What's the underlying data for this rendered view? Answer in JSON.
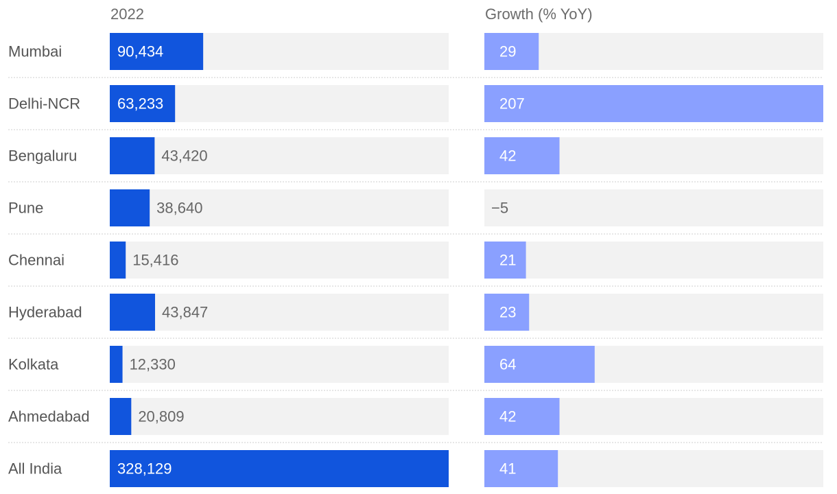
{
  "chart_data": {
    "type": "bar",
    "columns": [
      {
        "key": "value_2022",
        "header": "2022",
        "xlim": [
          0,
          328129
        ]
      },
      {
        "key": "growth_yoy",
        "header": "Growth (% YoY)",
        "xlim": [
          -5,
          207
        ]
      }
    ],
    "rows": [
      {
        "label": "Mumbai",
        "value_2022": 90434,
        "value_2022_label": "90,434",
        "growth_yoy": 29,
        "growth_label": "29"
      },
      {
        "label": "Delhi-NCR",
        "value_2022": 63233,
        "value_2022_label": "63,233",
        "growth_yoy": 207,
        "growth_label": "207"
      },
      {
        "label": "Bengaluru",
        "value_2022": 43420,
        "value_2022_label": "43,420",
        "growth_yoy": 42,
        "growth_label": "42"
      },
      {
        "label": "Pune",
        "value_2022": 38640,
        "value_2022_label": "38,640",
        "growth_yoy": -5,
        "growth_label": "−5"
      },
      {
        "label": "Chennai",
        "value_2022": 15416,
        "value_2022_label": "15,416",
        "growth_yoy": 21,
        "growth_label": "21"
      },
      {
        "label": "Hyderabad",
        "value_2022": 43847,
        "value_2022_label": "43,847",
        "growth_yoy": 23,
        "growth_label": "23"
      },
      {
        "label": "Kolkata",
        "value_2022": 12330,
        "value_2022_label": "12,330",
        "growth_yoy": 64,
        "growth_label": "64"
      },
      {
        "label": "Ahmedabad",
        "value_2022": 20809,
        "value_2022_label": "20,809",
        "growth_yoy": 42,
        "growth_label": "42"
      },
      {
        "label": "All India",
        "value_2022": 328129,
        "value_2022_label": "328,129",
        "growth_yoy": 41,
        "growth_label": "41"
      }
    ],
    "colors": {
      "bar_2022": "#1155dd",
      "bar_growth": "#8aa0ff",
      "track": "#f2f2f2",
      "label_text": "#555555",
      "value_text_inside": "#ffffff",
      "value_text_outside": "#666666",
      "separator": "#cccccc"
    }
  }
}
